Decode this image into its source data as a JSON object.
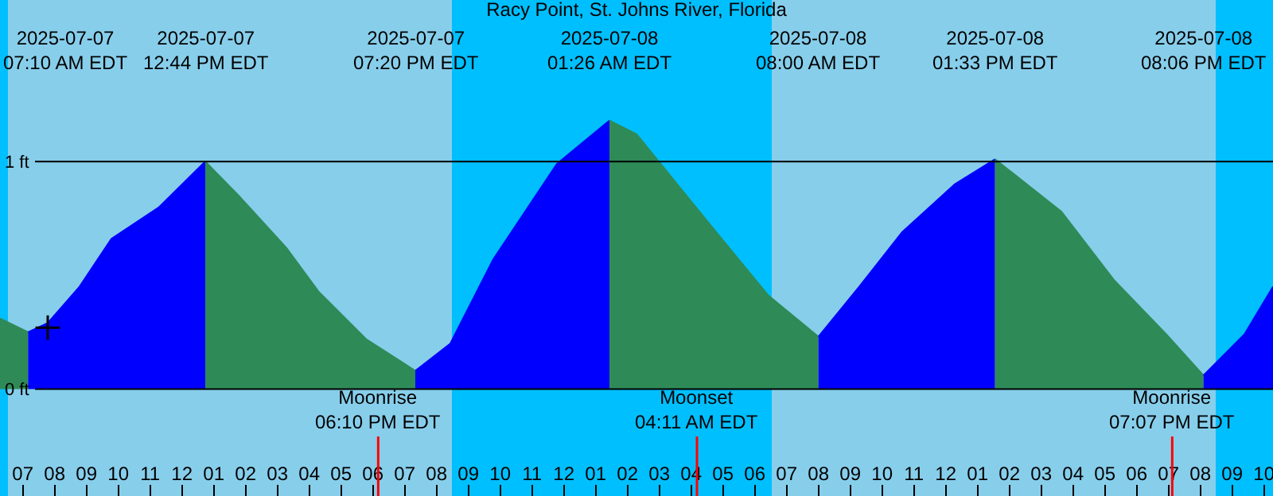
{
  "chart_data": {
    "type": "area",
    "title": "Racy Point, St. Johns River, Florida",
    "xlim": [
      "2025-07-07T06:17",
      "2025-07-08T22:17"
    ],
    "ylim": [
      -0.47,
      1.71
    ],
    "xticks": [
      {
        "value": "2025-07-07T07:00",
        "label": "07"
      },
      {
        "value": "2025-07-07T08:00",
        "label": "08"
      },
      {
        "value": "2025-07-07T09:00",
        "label": "09"
      },
      {
        "value": "2025-07-07T10:00",
        "label": "10"
      },
      {
        "value": "2025-07-07T11:00",
        "label": "11"
      },
      {
        "value": "2025-07-07T12:00",
        "label": "12"
      },
      {
        "value": "2025-07-07T13:00",
        "label": "01"
      },
      {
        "value": "2025-07-07T14:00",
        "label": "02"
      },
      {
        "value": "2025-07-07T15:00",
        "label": "03"
      },
      {
        "value": "2025-07-07T16:00",
        "label": "04"
      },
      {
        "value": "2025-07-07T17:00",
        "label": "05"
      },
      {
        "value": "2025-07-07T18:00",
        "label": "06"
      },
      {
        "value": "2025-07-07T19:00",
        "label": "07"
      },
      {
        "value": "2025-07-07T20:00",
        "label": "08"
      },
      {
        "value": "2025-07-07T21:00",
        "label": "09"
      },
      {
        "value": "2025-07-07T22:00",
        "label": "10"
      },
      {
        "value": "2025-07-07T23:00",
        "label": "11"
      },
      {
        "value": "2025-07-08T00:00",
        "label": "12"
      },
      {
        "value": "2025-07-08T01:00",
        "label": "01"
      },
      {
        "value": "2025-07-08T02:00",
        "label": "02"
      },
      {
        "value": "2025-07-08T03:00",
        "label": "03"
      },
      {
        "value": "2025-07-08T04:00",
        "label": "04"
      },
      {
        "value": "2025-07-08T05:00",
        "label": "05"
      },
      {
        "value": "2025-07-08T06:00",
        "label": "06"
      },
      {
        "value": "2025-07-08T07:00",
        "label": "07"
      },
      {
        "value": "2025-07-08T08:00",
        "label": "08"
      },
      {
        "value": "2025-07-08T09:00",
        "label": "09"
      },
      {
        "value": "2025-07-08T10:00",
        "label": "10"
      },
      {
        "value": "2025-07-08T11:00",
        "label": "11"
      },
      {
        "value": "2025-07-08T12:00",
        "label": "12"
      },
      {
        "value": "2025-07-08T13:00",
        "label": "01"
      },
      {
        "value": "2025-07-08T14:00",
        "label": "02"
      },
      {
        "value": "2025-07-08T15:00",
        "label": "03"
      },
      {
        "value": "2025-07-08T16:00",
        "label": "04"
      },
      {
        "value": "2025-07-08T17:00",
        "label": "05"
      },
      {
        "value": "2025-07-08T18:00",
        "label": "06"
      },
      {
        "value": "2025-07-08T19:00",
        "label": "07"
      },
      {
        "value": "2025-07-08T20:00",
        "label": "08"
      },
      {
        "value": "2025-07-08T21:00",
        "label": "09"
      },
      {
        "value": "2025-07-08T22:00",
        "label": "10"
      }
    ],
    "yticks": [
      {
        "value": 0,
        "label": "0 ft"
      },
      {
        "value": 1,
        "label": "1 ft"
      }
    ],
    "grid": "y",
    "series": [
      {
        "color": "#2e8b57",
        "x": [
          "2025-07-07T06:17",
          "2025-07-07T07:10"
        ],
        "values": [
          0.31,
          0.25
        ]
      },
      {
        "color": "#0000ff",
        "x": [
          "2025-07-07T07:10",
          "2025-07-07T07:47",
          "2025-07-07T08:47",
          "2025-07-07T09:47",
          "2025-07-07T11:17",
          "2025-07-07T12:44"
        ],
        "values": [
          0.25,
          0.29,
          0.45,
          0.66,
          0.8,
          1.0
        ]
      },
      {
        "color": "#2e8b57",
        "x": [
          "2025-07-07T12:44",
          "2025-07-07T13:47",
          "2025-07-07T15:17",
          "2025-07-07T16:17",
          "2025-07-07T17:47",
          "2025-07-07T19:20"
        ],
        "values": [
          1.0,
          0.85,
          0.62,
          0.43,
          0.22,
          0.08
        ]
      },
      {
        "color": "#0000ff",
        "x": [
          "2025-07-07T19:20",
          "2025-07-07T20:26",
          "2025-07-07T21:47",
          "2025-07-07T23:47",
          "2025-07-08T01:26"
        ],
        "values": [
          0.08,
          0.2,
          0.57,
          0.99,
          1.18
        ]
      },
      {
        "color": "#2e8b57",
        "x": [
          "2025-07-08T01:26",
          "2025-07-08T02:17",
          "2025-07-08T04:47",
          "2025-07-08T06:26",
          "2025-07-08T08:00"
        ],
        "values": [
          1.18,
          1.12,
          0.69,
          0.41,
          0.23
        ]
      },
      {
        "color": "#0000ff",
        "x": [
          "2025-07-08T08:00",
          "2025-07-08T09:17",
          "2025-07-08T10:38",
          "2025-07-08T12:17",
          "2025-07-08T13:33"
        ],
        "values": [
          0.23,
          0.45,
          0.69,
          0.9,
          1.01
        ]
      },
      {
        "color": "#2e8b57",
        "x": [
          "2025-07-08T13:33",
          "2025-07-08T15:38",
          "2025-07-08T17:17",
          "2025-07-08T18:56",
          "2025-07-08T20:06"
        ],
        "values": [
          1.01,
          0.78,
          0.48,
          0.24,
          0.06
        ]
      },
      {
        "color": "#0000ff",
        "x": [
          "2025-07-08T20:06",
          "2025-07-08T21:23",
          "2025-07-08T22:17"
        ],
        "values": [
          0.06,
          0.24,
          0.45
        ]
      },
      {
        "type": "scatter",
        "marker": "cross",
        "color": "#000000",
        "x": [
          "2025-07-07T07:47"
        ],
        "values": [
          0.27
        ]
      }
    ],
    "bands": [
      {
        "axis": "x",
        "from": "2025-07-07T06:17",
        "to": "2025-07-07T06:32",
        "color": "#00bfff"
      },
      {
        "axis": "x",
        "from": "2025-07-07T20:29",
        "to": "2025-07-08T06:32",
        "color": "#00bfff"
      },
      {
        "axis": "x",
        "from": "2025-07-08T20:29",
        "to": "2025-07-08T22:17",
        "color": "#00bfff"
      }
    ],
    "ref_lines": [
      {
        "axis": "x",
        "value": "2025-07-07T18:10",
        "label": "Moonrise\n06:10 PM EDT",
        "color": "#ff0000"
      },
      {
        "axis": "x",
        "value": "2025-07-08T04:11",
        "label": "Moonset\n04:11 AM EDT",
        "color": "#ff0000"
      },
      {
        "axis": "x",
        "value": "2025-07-08T19:07",
        "label": "Moonrise\n07:07 PM EDT",
        "color": "#ff0000"
      }
    ],
    "annotations": [
      "2025-07-07\n07:10 AM EDT",
      "2025-07-07\n12:44 PM EDT",
      "2025-07-07\n07:20 PM EDT",
      "2025-07-08\n01:26 AM EDT",
      "2025-07-08\n08:00 AM EDT",
      "2025-07-08\n01:33 PM EDT",
      "2025-07-08\n08:06 PM EDT"
    ]
  }
}
